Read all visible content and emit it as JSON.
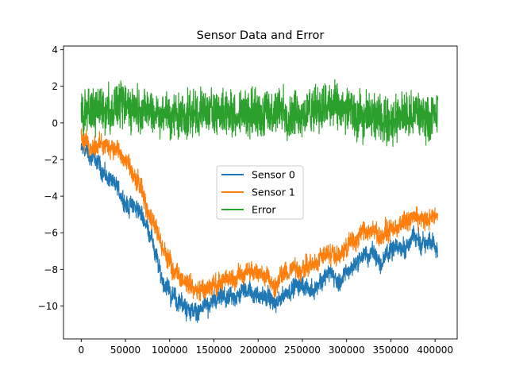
{
  "chart_data": {
    "type": "line",
    "title": "Sensor Data and Error",
    "xlabel": "",
    "ylabel": "",
    "xlim": [
      -20000,
      425000
    ],
    "ylim": [
      -11.8,
      4.2
    ],
    "x_ticks": [
      0,
      50000,
      100000,
      150000,
      200000,
      250000,
      300000,
      350000,
      400000
    ],
    "y_ticks": [
      4,
      2,
      0,
      -2,
      -4,
      -6,
      -8,
      -10
    ],
    "x_tick_labels": [
      "0",
      "50000",
      "100000",
      "150000",
      "200000",
      "250000",
      "300000",
      "350000",
      "400000"
    ],
    "y_tick_labels": [
      "4",
      "2",
      "0",
      "−2",
      "−4",
      "−6",
      "−8",
      "−10"
    ],
    "grid": false,
    "legend_position": "center",
    "series": [
      {
        "name": "Sensor 0",
        "color": "#1f77b4",
        "noise_amplitude": 0.55,
        "x": [
          0,
          10000,
          20000,
          30000,
          40000,
          50000,
          60000,
          70000,
          80000,
          90000,
          100000,
          110000,
          120000,
          130000,
          140000,
          150000,
          160000,
          170000,
          180000,
          190000,
          200000,
          210000,
          220000,
          230000,
          240000,
          250000,
          260000,
          270000,
          280000,
          290000,
          300000,
          310000,
          320000,
          330000,
          340000,
          350000,
          360000,
          370000,
          380000,
          390000,
          403000
        ],
        "y": [
          -1.5,
          -1.8,
          -2.3,
          -3.0,
          -3.6,
          -4.3,
          -4.6,
          -5.1,
          -6.3,
          -8.3,
          -9.3,
          -9.8,
          -10.2,
          -10.3,
          -10.0,
          -9.9,
          -9.6,
          -9.7,
          -9.3,
          -9.1,
          -9.3,
          -9.6,
          -10.0,
          -9.3,
          -9.0,
          -8.9,
          -9.1,
          -8.6,
          -8.3,
          -8.6,
          -8.2,
          -7.6,
          -7.2,
          -7.1,
          -7.4,
          -7.0,
          -6.8,
          -6.6,
          -6.4,
          -6.6,
          -6.5
        ]
      },
      {
        "name": "Sensor 1",
        "color": "#ff7f0e",
        "noise_amplitude": 0.6,
        "x": [
          0,
          10000,
          20000,
          30000,
          40000,
          50000,
          60000,
          70000,
          80000,
          90000,
          100000,
          110000,
          120000,
          130000,
          140000,
          150000,
          160000,
          170000,
          180000,
          190000,
          200000,
          210000,
          220000,
          230000,
          240000,
          250000,
          260000,
          270000,
          280000,
          290000,
          300000,
          310000,
          320000,
          330000,
          340000,
          350000,
          360000,
          370000,
          380000,
          390000,
          403000
        ],
        "y": [
          -0.8,
          -1.1,
          -1.2,
          -1.2,
          -1.3,
          -2.1,
          -2.9,
          -4.0,
          -5.3,
          -6.7,
          -7.6,
          -8.3,
          -8.7,
          -9.0,
          -9.1,
          -8.8,
          -8.6,
          -8.5,
          -8.3,
          -8.1,
          -8.1,
          -8.3,
          -8.8,
          -8.2,
          -8.0,
          -7.8,
          -7.8,
          -7.4,
          -7.1,
          -7.3,
          -6.8,
          -6.3,
          -5.9,
          -5.9,
          -6.2,
          -5.8,
          -5.6,
          -5.4,
          -5.1,
          -5.3,
          -5.0
        ]
      },
      {
        "name": "Error",
        "color": "#2ca02c",
        "noise_amplitude": 1.45,
        "x": [
          0,
          10000,
          20000,
          30000,
          40000,
          50000,
          60000,
          70000,
          80000,
          90000,
          100000,
          110000,
          120000,
          130000,
          140000,
          150000,
          160000,
          170000,
          180000,
          190000,
          200000,
          210000,
          220000,
          230000,
          240000,
          250000,
          260000,
          270000,
          280000,
          290000,
          300000,
          310000,
          320000,
          330000,
          340000,
          350000,
          360000,
          370000,
          380000,
          390000,
          403000
        ],
        "y": [
          0.6,
          0.6,
          0.7,
          0.7,
          0.8,
          0.9,
          0.9,
          0.8,
          0.7,
          0.5,
          0.4,
          0.4,
          0.4,
          0.5,
          0.6,
          0.7,
          0.6,
          0.6,
          0.6,
          0.6,
          0.5,
          0.5,
          0.6,
          0.6,
          0.6,
          0.6,
          0.7,
          0.8,
          0.8,
          0.7,
          0.6,
          0.5,
          0.4,
          0.3,
          0.2,
          0.2,
          0.3,
          0.4,
          0.4,
          0.4,
          0.5
        ]
      }
    ]
  }
}
